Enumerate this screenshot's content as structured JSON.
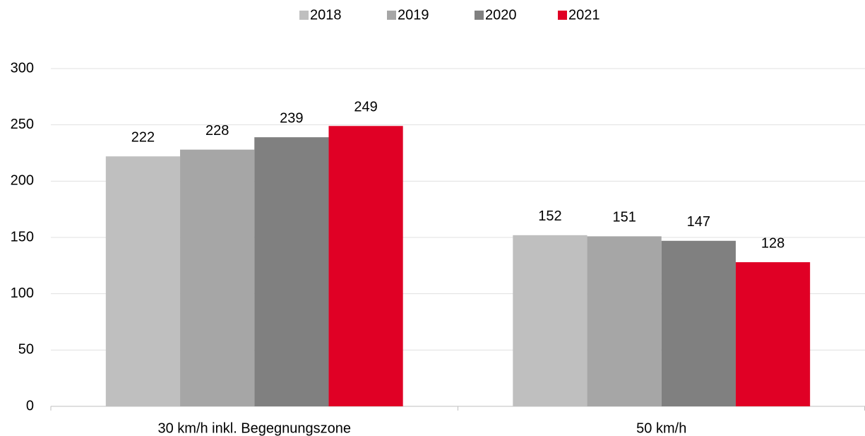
{
  "chart_data": {
    "type": "bar",
    "categories": [
      "30 km/h inkl. Begegnungszone",
      "50 km/h"
    ],
    "series": [
      {
        "name": "2018",
        "color": "#bfbfbf",
        "values": [
          222,
          152
        ]
      },
      {
        "name": "2019",
        "color": "#a6a6a6",
        "values": [
          228,
          151
        ]
      },
      {
        "name": "2020",
        "color": "#808080",
        "values": [
          239,
          147
        ]
      },
      {
        "name": "2021",
        "color": "#e00025",
        "values": [
          249,
          128
        ]
      }
    ],
    "ylim": [
      0,
      300
    ],
    "yticks": [
      0,
      50,
      100,
      150,
      200,
      250,
      300
    ],
    "grid": true,
    "legend": "top"
  }
}
